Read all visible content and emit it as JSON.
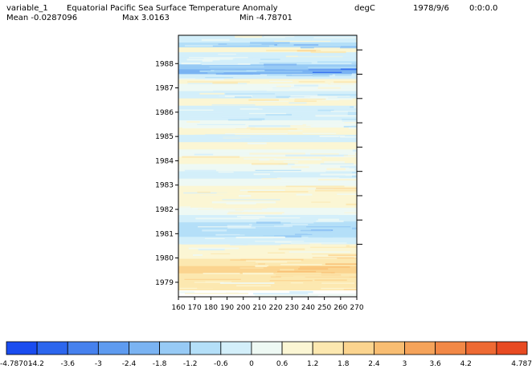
{
  "header": {
    "variable": "variable_1",
    "title": "Equatorial Pacific Sea Surface Temperature Anomaly",
    "units": "degC",
    "date": "1978/9/6",
    "time": "0:0:0.0",
    "mean": "Mean -0.0287096",
    "max": "Max 3.0163",
    "min": "Min -4.78701"
  },
  "chart_data": {
    "type": "heatmap",
    "title": "Equatorial Pacific Sea Surface Temperature Anomaly",
    "units": "degC",
    "x_ticks": [
      "160",
      "170",
      "180",
      "190",
      "200",
      "210",
      "220",
      "230",
      "240",
      "250",
      "260",
      "270"
    ],
    "x_range": [
      160,
      270
    ],
    "y_ticks": [
      "1979",
      "1980",
      "1981",
      "1982",
      "1983",
      "1984",
      "1985",
      "1986",
      "1987",
      "1988"
    ],
    "y_range": [
      1978.7,
      1988.9
    ],
    "value_range": [
      -4.78701,
      4.787
    ],
    "legend_position": "bottom",
    "colorbar_ticks": [
      "-4.78701",
      "-4.2",
      "-3.6",
      "-3",
      "-2.4",
      "-1.8",
      "-1.2",
      "-0.6",
      "0",
      "0.6",
      "1.2",
      "1.8",
      "2.4",
      "3",
      "3.6",
      "4.2",
      "4.787"
    ],
    "colorbar_colors": [
      "#1a4cf0",
      "#2c66ee",
      "#4681ee",
      "#5e9bf0",
      "#7ab3f2",
      "#97caf5",
      "#b4dff8",
      "#d3effa",
      "#eef9f4",
      "#fbf6d4",
      "#fce8b0",
      "#fbd48f",
      "#f8bd72",
      "#f5a35a",
      "#f28846",
      "#ee6a33",
      "#e84a22"
    ],
    "time_bands": [
      {
        "year": 1978.7,
        "value": 0.9
      },
      {
        "year": 1979.0,
        "value": 1.3
      },
      {
        "year": 1979.4,
        "value": 1.6
      },
      {
        "year": 1979.7,
        "value": 1.2
      },
      {
        "year": 1980.0,
        "value": 0.8
      },
      {
        "year": 1980.3,
        "value": 0.4
      },
      {
        "year": 1980.6,
        "value": -0.5
      },
      {
        "year": 1980.9,
        "value": -1.2
      },
      {
        "year": 1981.2,
        "value": -0.9
      },
      {
        "year": 1981.5,
        "value": -0.4
      },
      {
        "year": 1981.8,
        "value": 0.2
      },
      {
        "year": 1982.1,
        "value": 0.6
      },
      {
        "year": 1982.4,
        "value": 0.3
      },
      {
        "year": 1982.7,
        "value": 0.7
      },
      {
        "year": 1983.0,
        "value": 0.2
      },
      {
        "year": 1983.3,
        "value": -0.4
      },
      {
        "year": 1983.6,
        "value": -0.2
      },
      {
        "year": 1983.9,
        "value": 0.5
      },
      {
        "year": 1984.2,
        "value": 0.1
      },
      {
        "year": 1984.5,
        "value": 0.6
      },
      {
        "year": 1984.8,
        "value": -0.3
      },
      {
        "year": 1985.1,
        "value": 0.4
      },
      {
        "year": 1985.4,
        "value": -0.2
      },
      {
        "year": 1985.7,
        "value": -0.6
      },
      {
        "year": 1986.0,
        "value": -0.3
      },
      {
        "year": 1986.3,
        "value": 0.3
      },
      {
        "year": 1986.6,
        "value": -0.4
      },
      {
        "year": 1986.9,
        "value": 0.2
      },
      {
        "year": 1987.2,
        "value": 0.5
      },
      {
        "year": 1987.4,
        "value": -0.8
      },
      {
        "year": 1987.6,
        "value": -2.4
      },
      {
        "year": 1987.8,
        "value": -1.5
      },
      {
        "year": 1988.0,
        "value": -0.7
      },
      {
        "year": 1988.3,
        "value": -0.3
      },
      {
        "year": 1988.5,
        "value": 0.8
      },
      {
        "year": 1988.7,
        "value": -1.3
      },
      {
        "year": 1988.9,
        "value": -0.6
      }
    ]
  }
}
